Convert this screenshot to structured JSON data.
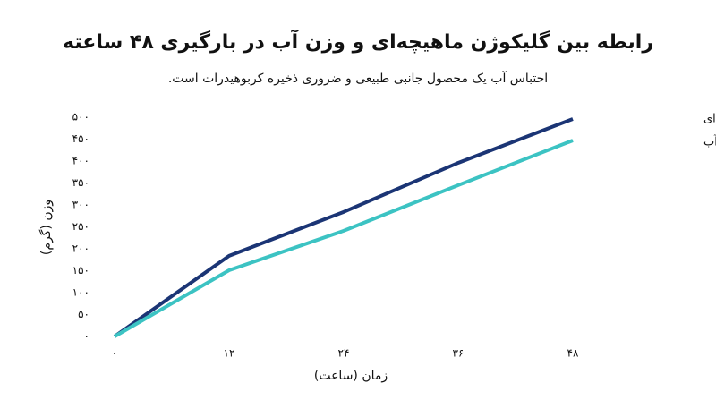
{
  "chart_data": {
    "type": "line",
    "title": "رابطه بین گلیکوژن ماهیچه‌ای و وزن آب در بارگیری ۴۸ ساعته",
    "subtitle": "احتباس آب یک محصول جانبی طبیعی و ضروری ذخیره کربوهیدرات است.",
    "x_label": "زمان (ساعت)",
    "y_label": "وزن (گرم)",
    "x": [
      0,
      12,
      24,
      36,
      48
    ],
    "series": [
      {
        "name": "گلیکوژن ماهیچه‌ای",
        "color": "#1b3575",
        "values": [
          0,
          184,
          284,
          396,
          496
        ]
      },
      {
        "name": "وزن آب",
        "color": "#3cc3c3",
        "values": [
          0,
          151,
          241,
          345,
          447
        ]
      }
    ],
    "xlim": [
      0,
      48
    ],
    "xticks": [
      {
        "value": 0,
        "label": "۰"
      },
      {
        "value": 12,
        "label": "۱۲"
      },
      {
        "value": 24,
        "label": "۲۴"
      },
      {
        "value": 36,
        "label": "۳۶"
      },
      {
        "value": 48,
        "label": "۴۸"
      }
    ],
    "ylim": [
      0,
      500
    ],
    "yticks": [
      {
        "value": 0,
        "label": "۰"
      },
      {
        "value": 50,
        "label": "۵۰"
      },
      {
        "value": 100,
        "label": "۱۰۰"
      },
      {
        "value": 150,
        "label": "۱۵۰"
      },
      {
        "value": 200,
        "label": "۲۰۰"
      },
      {
        "value": 250,
        "label": "۲۵۰"
      },
      {
        "value": 300,
        "label": "۳۰۰"
      },
      {
        "value": 350,
        "label": "۳۵۰"
      },
      {
        "value": 400,
        "label": "۴۰۰"
      },
      {
        "value": 450,
        "label": "۴۵۰"
      },
      {
        "value": 500,
        "label": "۵۰۰"
      }
    ],
    "grid": false,
    "legend": "top-right"
  }
}
